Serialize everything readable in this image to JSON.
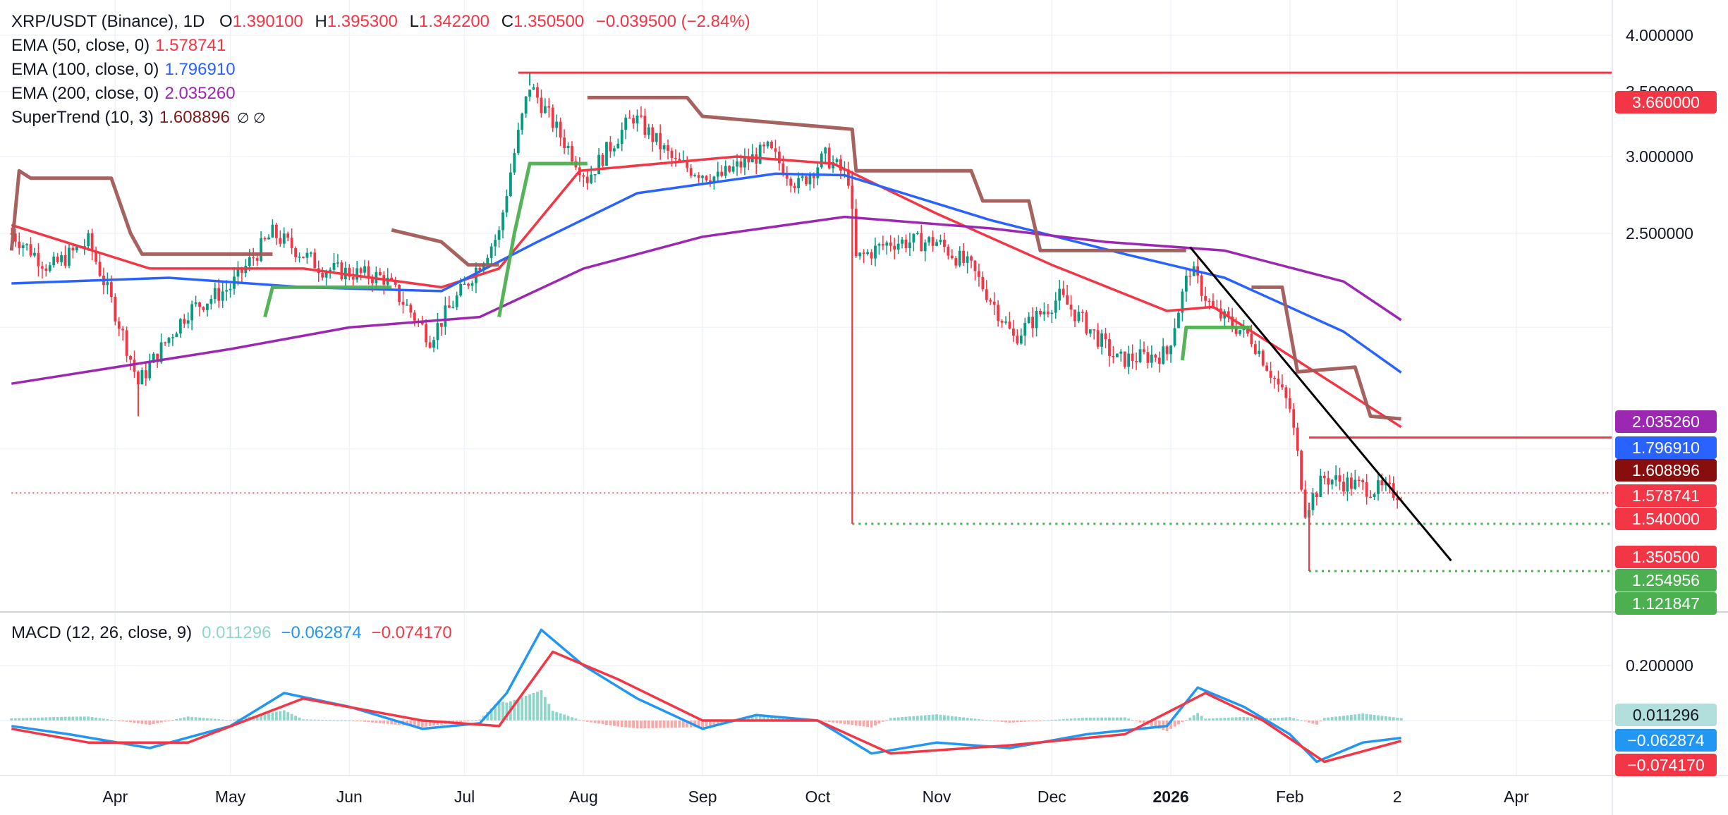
{
  "header": {
    "symbol": "XRP/USDT (Binance), 1D",
    "o_label": "O",
    "o": "1.390100",
    "h_label": "H",
    "h": "1.395300",
    "l_label": "L",
    "l": "1.342200",
    "c_label": "C",
    "c": "1.350500",
    "change": "−0.039500 (−2.84%)"
  },
  "indicators": {
    "ema50": {
      "label": "EMA (50, close, 0)",
      "value": "1.578741",
      "color": "#f23645"
    },
    "ema100": {
      "label": "EMA (100, close, 0)",
      "value": "1.796910",
      "color": "#2962ff"
    },
    "ema200": {
      "label": "EMA (200, close, 0)",
      "value": "2.035260",
      "color": "#9c27b0"
    },
    "supertrend": {
      "label": "SuperTrend (10, 3)",
      "value": "1.608896",
      "icons": "∅ ∅",
      "color": "#7a1a1a"
    }
  },
  "macd": {
    "label": "MACD (12, 26, close, 9)",
    "hist": "0.011296",
    "macd": "−0.062874",
    "signal": "−0.074170",
    "hist_color": "#8ed6c9",
    "macd_color": "#2196f3",
    "signal_color": "#f23645"
  },
  "price_axis": {
    "ticks": [
      "4.000000",
      "3.500000",
      "3.000000",
      "2.500000"
    ],
    "tags": [
      {
        "text": "3.660000",
        "bg": "#f23645",
        "fg": "#ffffff",
        "value": 3.66
      },
      {
        "text": "2.035260",
        "bg": "#9c27b0",
        "fg": "#ffffff",
        "value": 2.035
      },
      {
        "text": "1.796910",
        "bg": "#2962ff",
        "fg": "#ffffff",
        "value": 1.797
      },
      {
        "text": "1.608896",
        "bg": "#880e0e",
        "fg": "#ffffff",
        "value": 1.609
      },
      {
        "text": "1.578741",
        "bg": "#f23645",
        "fg": "#ffffff",
        "value": 1.579
      },
      {
        "text": "1.540000",
        "bg": "#f23645",
        "fg": "#ffffff",
        "value": 1.54
      },
      {
        "text": "1.350500",
        "bg": "#f23645",
        "fg": "#ffffff",
        "value": 1.35
      },
      {
        "text": "1.254956",
        "bg": "#4caf50",
        "fg": "#ffffff",
        "value": 1.255
      },
      {
        "text": "1.121847",
        "bg": "#4caf50",
        "fg": "#ffffff",
        "value": 1.122
      }
    ]
  },
  "macd_axis": {
    "ticks": [
      "0.200000"
    ],
    "tags": [
      {
        "text": "0.011296",
        "bg": "#b2dfdb",
        "fg": "#131722"
      },
      {
        "text": "−0.062874",
        "bg": "#2196f3",
        "fg": "#ffffff"
      },
      {
        "text": "−0.074170",
        "bg": "#f23645",
        "fg": "#ffffff"
      }
    ]
  },
  "time_axis": {
    "labels": [
      "Apr",
      "May",
      "Jun",
      "Jul",
      "Aug",
      "Sep",
      "Oct",
      "Nov",
      "Dec",
      "2026",
      "Feb",
      "2",
      "Apr"
    ]
  },
  "chart_data": {
    "type": "candlestick",
    "symbol": "XRP/USDT",
    "interval": "1D",
    "y_scale": "log",
    "ylim": [
      1.1,
      4.1
    ],
    "x_range": [
      "2025-03-05",
      "2026-04-25"
    ],
    "ohlc_last": {
      "open": 1.3901,
      "high": 1.3953,
      "low": 1.3422,
      "close": 1.3505
    },
    "close_anchors": [
      {
        "date": "2025-03-05",
        "value": 2.5
      },
      {
        "date": "2025-03-15",
        "value": 2.3
      },
      {
        "date": "2025-03-25",
        "value": 2.45
      },
      {
        "date": "2025-04-07",
        "value": 1.75
      },
      {
        "date": "2025-04-20",
        "value": 2.08
      },
      {
        "date": "2025-05-01",
        "value": 2.2
      },
      {
        "date": "2025-05-12",
        "value": 2.5
      },
      {
        "date": "2025-05-25",
        "value": 2.3
      },
      {
        "date": "2025-06-10",
        "value": 2.25
      },
      {
        "date": "2025-06-22",
        "value": 1.95
      },
      {
        "date": "2025-07-01",
        "value": 2.2
      },
      {
        "date": "2025-07-10",
        "value": 2.5
      },
      {
        "date": "2025-07-18",
        "value": 3.55
      },
      {
        "date": "2025-07-26",
        "value": 3.15
      },
      {
        "date": "2025-08-02",
        "value": 2.85
      },
      {
        "date": "2025-08-14",
        "value": 3.3
      },
      {
        "date": "2025-08-25",
        "value": 2.95
      },
      {
        "date": "2025-09-05",
        "value": 2.85
      },
      {
        "date": "2025-09-18",
        "value": 3.05
      },
      {
        "date": "2025-09-26",
        "value": 2.8
      },
      {
        "date": "2025-10-03",
        "value": 3.0
      },
      {
        "date": "2025-10-09",
        "value": 2.85
      },
      {
        "date": "2025-10-11",
        "value": 2.35
      },
      {
        "date": "2025-10-20",
        "value": 2.45
      },
      {
        "date": "2025-11-01",
        "value": 2.45
      },
      {
        "date": "2025-11-10",
        "value": 2.3
      },
      {
        "date": "2025-11-21",
        "value": 1.95
      },
      {
        "date": "2025-12-03",
        "value": 2.15
      },
      {
        "date": "2025-12-18",
        "value": 1.85
      },
      {
        "date": "2025-12-31",
        "value": 1.88
      },
      {
        "date": "2026-01-06",
        "value": 2.3
      },
      {
        "date": "2026-01-12",
        "value": 2.08
      },
      {
        "date": "2026-01-22",
        "value": 1.95
      },
      {
        "date": "2026-02-01",
        "value": 1.65
      },
      {
        "date": "2026-02-05",
        "value": 1.3
      },
      {
        "date": "2026-02-10",
        "value": 1.4
      },
      {
        "date": "2026-02-20",
        "value": 1.37
      },
      {
        "date": "2026-03-02",
        "value": 1.35
      }
    ],
    "wick_extremes": [
      {
        "date": "2025-04-07",
        "low": 1.62
      },
      {
        "date": "2025-07-18",
        "high": 3.66
      },
      {
        "date": "2025-10-10",
        "low": 1.255
      },
      {
        "date": "2026-02-06",
        "low": 1.122
      }
    ],
    "series": [
      {
        "name": "EMA (50, close, 0)",
        "color": "#f23645",
        "last": 1.578741,
        "points": [
          [
            "2025-03-05",
            2.55
          ],
          [
            "2025-04-10",
            2.3
          ],
          [
            "2025-05-20",
            2.3
          ],
          [
            "2025-06-25",
            2.2
          ],
          [
            "2025-07-10",
            2.3
          ],
          [
            "2025-07-31",
            2.9
          ],
          [
            "2025-09-10",
            3.0
          ],
          [
            "2025-10-05",
            2.95
          ],
          [
            "2025-11-01",
            2.62
          ],
          [
            "2025-12-01",
            2.32
          ],
          [
            "2025-12-31",
            2.08
          ],
          [
            "2026-01-12",
            2.1
          ],
          [
            "2026-02-01",
            1.87
          ],
          [
            "2026-03-02",
            1.579
          ]
        ]
      },
      {
        "name": "EMA (100, close, 0)",
        "color": "#2962ff",
        "last": 1.79691,
        "points": [
          [
            "2025-03-05",
            2.22
          ],
          [
            "2025-04-15",
            2.25
          ],
          [
            "2025-05-20",
            2.2
          ],
          [
            "2025-06-25",
            2.18
          ],
          [
            "2025-07-20",
            2.45
          ],
          [
            "2025-08-15",
            2.75
          ],
          [
            "2025-09-20",
            2.88
          ],
          [
            "2025-10-08",
            2.87
          ],
          [
            "2025-11-15",
            2.58
          ],
          [
            "2025-12-20",
            2.38
          ],
          [
            "2026-01-15",
            2.25
          ],
          [
            "2026-02-15",
            1.98
          ],
          [
            "2026-03-02",
            1.797
          ]
        ]
      },
      {
        "name": "EMA (200, close, 0)",
        "color": "#9c27b0",
        "last": 2.03526,
        "points": [
          [
            "2025-03-05",
            1.75
          ],
          [
            "2025-05-01",
            1.9
          ],
          [
            "2025-06-01",
            2.0
          ],
          [
            "2025-07-05",
            2.05
          ],
          [
            "2025-08-01",
            2.3
          ],
          [
            "2025-09-01",
            2.48
          ],
          [
            "2025-10-08",
            2.6
          ],
          [
            "2025-11-15",
            2.53
          ],
          [
            "2025-12-15",
            2.45
          ],
          [
            "2026-01-15",
            2.4
          ],
          [
            "2026-02-15",
            2.23
          ],
          [
            "2026-03-02",
            2.035
          ]
        ]
      },
      {
        "name": "SuperTrend (10, 3)",
        "color": "#a05a55",
        "last": 1.608896,
        "segments": [
          {
            "trend": "down",
            "points": [
              [
                "2025-03-05",
                2.4
              ],
              [
                "2025-03-07",
                2.9
              ],
              [
                "2025-03-10",
                2.85
              ],
              [
                "2025-03-31",
                2.85
              ],
              [
                "2025-04-05",
                2.5
              ],
              [
                "2025-04-08",
                2.38
              ],
              [
                "2025-05-12",
                2.38
              ]
            ]
          },
          {
            "trend": "up",
            "points": [
              [
                "2025-05-10",
                2.05
              ],
              [
                "2025-05-12",
                2.2
              ],
              [
                "2025-06-12",
                2.2
              ]
            ]
          },
          {
            "trend": "down",
            "points": [
              [
                "2025-06-12",
                2.52
              ],
              [
                "2025-06-25",
                2.45
              ],
              [
                "2025-07-02",
                2.32
              ],
              [
                "2025-07-10",
                2.32
              ]
            ]
          },
          {
            "trend": "up",
            "points": [
              [
                "2025-07-10",
                2.05
              ],
              [
                "2025-07-14",
                2.5
              ],
              [
                "2025-07-18",
                2.95
              ],
              [
                "2025-08-02",
                2.95
              ]
            ]
          },
          {
            "trend": "down",
            "points": [
              [
                "2025-08-02",
                3.45
              ],
              [
                "2025-08-28",
                3.45
              ],
              [
                "2025-09-01",
                3.3
              ],
              [
                "2025-10-10",
                3.2
              ],
              [
                "2025-10-11",
                2.9
              ],
              [
                "2025-11-10",
                2.9
              ],
              [
                "2025-11-13",
                2.7
              ],
              [
                "2025-11-25",
                2.7
              ],
              [
                "2025-11-28",
                2.4
              ],
              [
                "2026-01-05",
                2.4
              ]
            ]
          },
          {
            "trend": "up",
            "points": [
              [
                "2026-01-04",
                1.85
              ],
              [
                "2026-01-05",
                2.0
              ],
              [
                "2026-01-22",
                2.0
              ]
            ]
          },
          {
            "trend": "down",
            "points": [
              [
                "2026-01-22",
                2.2
              ],
              [
                "2026-01-30",
                2.2
              ],
              [
                "2026-02-03",
                1.8
              ],
              [
                "2026-02-18",
                1.82
              ],
              [
                "2026-02-22",
                1.62
              ],
              [
                "2026-03-02",
                1.61
              ]
            ]
          }
        ]
      }
    ],
    "horizontal_levels": [
      {
        "value": 3.66,
        "label": "3.660000",
        "color": "#f23645",
        "style": "solid",
        "from": "2025-07-15"
      },
      {
        "value": 1.54,
        "label": "1.540000",
        "color": "#f23645",
        "style": "solid",
        "from": "2026-02-06"
      },
      {
        "value": 1.255,
        "label": "1.254956",
        "color": "#4caf50",
        "style": "dotted",
        "from": "2025-10-10"
      },
      {
        "value": 1.122,
        "label": "1.121847",
        "color": "#4caf50",
        "style": "dotted",
        "from": "2026-02-06"
      },
      {
        "value": 1.3505,
        "label": "1.350500",
        "color": "#f23645",
        "style": "dotted",
        "from": "2025-03-05"
      }
    ],
    "trendline": {
      "color": "#000000",
      "from": [
        "2026-01-06",
        2.42
      ],
      "to": [
        "2026-03-15",
        1.15
      ]
    },
    "macd": {
      "params": "12, 26, close, 9",
      "ylim": [
        -0.22,
        0.34
      ],
      "last": {
        "histogram": 0.011296,
        "macd": -0.062874,
        "signal": -0.07417
      },
      "macd_points": [
        [
          "2025-03-05",
          -0.02
        ],
        [
          "2025-03-20",
          -0.05
        ],
        [
          "2025-04-10",
          -0.1
        ],
        [
          "2025-05-01",
          -0.02
        ],
        [
          "2025-05-15",
          0.1
        ],
        [
          "2025-06-01",
          0.05
        ],
        [
          "2025-06-20",
          -0.03
        ],
        [
          "2025-07-05",
          -0.01
        ],
        [
          "2025-07-12",
          0.1
        ],
        [
          "2025-07-21",
          0.33
        ],
        [
          "2025-08-01",
          0.2
        ],
        [
          "2025-08-15",
          0.08
        ],
        [
          "2025-09-01",
          -0.03
        ],
        [
          "2025-09-15",
          0.02
        ],
        [
          "2025-10-01",
          0.0
        ],
        [
          "2025-10-15",
          -0.12
        ],
        [
          "2025-11-01",
          -0.08
        ],
        [
          "2025-11-20",
          -0.1
        ],
        [
          "2025-12-10",
          -0.05
        ],
        [
          "2025-12-31",
          -0.02
        ],
        [
          "2026-01-08",
          0.12
        ],
        [
          "2026-01-20",
          0.05
        ],
        [
          "2026-02-01",
          -0.05
        ],
        [
          "2026-02-08",
          -0.15
        ],
        [
          "2026-02-20",
          -0.08
        ],
        [
          "2026-03-02",
          -0.063
        ]
      ],
      "signal_points": [
        [
          "2025-03-05",
          -0.03
        ],
        [
          "2025-03-25",
          -0.08
        ],
        [
          "2025-04-20",
          -0.08
        ],
        [
          "2025-05-20",
          0.08
        ],
        [
          "2025-06-20",
          0.0
        ],
        [
          "2025-07-10",
          -0.02
        ],
        [
          "2025-07-24",
          0.25
        ],
        [
          "2025-08-10",
          0.15
        ],
        [
          "2025-09-01",
          0.0
        ],
        [
          "2025-10-01",
          0.0
        ],
        [
          "2025-10-20",
          -0.12
        ],
        [
          "2025-11-20",
          -0.09
        ],
        [
          "2025-12-20",
          -0.05
        ],
        [
          "2026-01-10",
          0.1
        ],
        [
          "2026-01-25",
          0.0
        ],
        [
          "2026-02-10",
          -0.15
        ],
        [
          "2026-03-02",
          -0.074
        ]
      ]
    }
  }
}
